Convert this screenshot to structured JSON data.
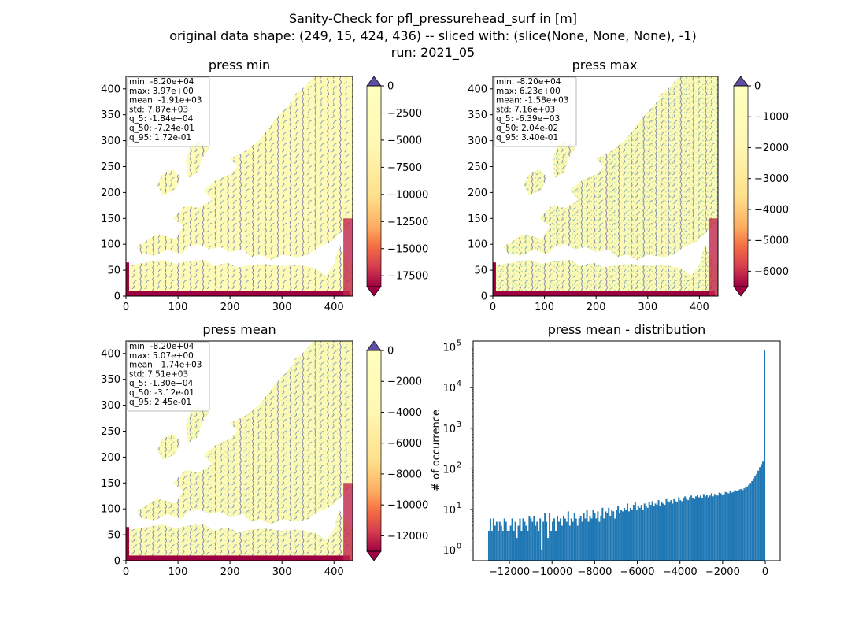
{
  "figure": {
    "title_lines": [
      "Sanity-Check for pfl_pressurehead_surf in [m]",
      "original data shape: (249, 15, 424, 436) -- sliced with: (slice(None, None, None), -1)",
      "run: 2021_05"
    ]
  },
  "chart_data": [
    {
      "type": "heatmap",
      "title": "press min",
      "xlim": [
        0,
        436
      ],
      "ylim": [
        0,
        424
      ],
      "xticks": [
        0,
        100,
        200,
        300,
        400
      ],
      "yticks": [
        0,
        50,
        100,
        150,
        200,
        250,
        300,
        350,
        400
      ],
      "colormap": "Spectral",
      "colorbar": {
        "min": -18500,
        "max": 0,
        "ticks": [
          0,
          -2500,
          -5000,
          -7500,
          -10000,
          -12500,
          -15000,
          -17500
        ],
        "extend": "both"
      },
      "stats": [
        "min: -8.20e+04",
        "max: 3.97e+00",
        "mean: -1.91e+03",
        "std: 7.87e+03",
        "q_5: -1.84e+04",
        "q_50: -7.24e-01",
        "q_95: 1.72e-01"
      ]
    },
    {
      "type": "heatmap",
      "title": "press max",
      "xlim": [
        0,
        436
      ],
      "ylim": [
        0,
        424
      ],
      "xticks": [
        0,
        100,
        200,
        300,
        400
      ],
      "yticks": [
        0,
        50,
        100,
        150,
        200,
        250,
        300,
        350,
        400
      ],
      "colormap": "Spectral",
      "colorbar": {
        "min": -6500,
        "max": 0,
        "ticks": [
          0,
          -1000,
          -2000,
          -3000,
          -4000,
          -5000,
          -6000
        ],
        "extend": "both"
      },
      "stats": [
        "min: -8.20e+04",
        "max: 6.23e+00",
        "mean: -1.58e+03",
        "std: 7.16e+03",
        "q_5: -6.39e+03",
        "q_50: 2.04e-02",
        "q_95: 3.40e-01"
      ]
    },
    {
      "type": "heatmap",
      "title": "press mean",
      "xlim": [
        0,
        436
      ],
      "ylim": [
        0,
        424
      ],
      "xticks": [
        0,
        100,
        200,
        300,
        400
      ],
      "yticks": [
        0,
        50,
        100,
        150,
        200,
        250,
        300,
        350,
        400
      ],
      "colormap": "Spectral",
      "colorbar": {
        "min": -13000,
        "max": 0,
        "ticks": [
          0,
          -2000,
          -4000,
          -6000,
          -8000,
          -10000,
          -12000
        ],
        "extend": "both"
      },
      "stats": [
        "min: -8.20e+04",
        "max: 5.07e+00",
        "mean: -1.74e+03",
        "std: 7.51e+03",
        "q_5: -1.30e+04",
        "q_50: -3.12e-01",
        "q_95: 2.45e-01"
      ]
    },
    {
      "type": "bar",
      "title": "press mean - distribution",
      "ylabel": "# of occurrence",
      "yscale": "log",
      "xlim": [
        -13700,
        700
      ],
      "ylim": [
        0.55,
        140000
      ],
      "xticks": [
        -12000,
        -10000,
        -8000,
        -6000,
        -4000,
        -2000,
        0
      ],
      "yticks_exponents": [
        0,
        1,
        2,
        3,
        4,
        5
      ],
      "color": "#1f77b4",
      "bin_range": [
        -13000,
        0
      ],
      "counts": [
        3,
        6,
        3,
        6,
        4,
        5,
        3,
        5,
        4,
        3,
        6,
        5,
        3,
        3,
        4,
        6,
        3,
        5,
        2,
        4,
        6,
        3,
        6,
        5,
        4,
        3,
        7,
        6,
        5,
        7,
        4,
        5,
        3,
        6,
        1,
        5,
        8,
        5,
        2,
        8,
        3,
        5,
        6,
        3,
        7,
        5,
        6,
        4,
        7,
        6,
        5,
        9,
        4,
        6,
        5,
        8,
        6,
        4,
        6,
        7,
        5,
        8,
        6,
        10,
        5,
        7,
        6,
        10,
        8,
        6,
        9,
        5,
        7,
        11,
        6,
        9,
        8,
        11,
        7,
        10,
        9,
        6,
        10,
        12,
        8,
        10,
        9,
        11,
        10,
        14,
        9,
        11,
        10,
        13,
        15,
        10,
        12,
        11,
        13,
        10,
        14,
        12,
        11,
        15,
        13,
        16,
        12,
        14,
        13,
        17,
        12,
        15,
        14,
        13,
        18,
        16,
        15,
        17,
        14,
        18,
        16,
        15,
        20,
        17,
        16,
        19,
        21,
        18,
        17,
        20,
        22,
        19,
        18,
        21,
        23,
        20,
        22,
        19,
        24,
        21,
        23,
        20,
        22,
        25,
        21,
        24,
        23,
        22,
        26,
        25,
        23,
        24,
        27,
        26,
        25,
        28,
        26,
        27,
        30,
        29,
        28,
        31,
        32,
        30,
        33,
        35,
        37,
        40,
        45,
        50,
        58,
        65,
        75,
        90,
        110,
        130,
        150,
        85000
      ]
    }
  ]
}
